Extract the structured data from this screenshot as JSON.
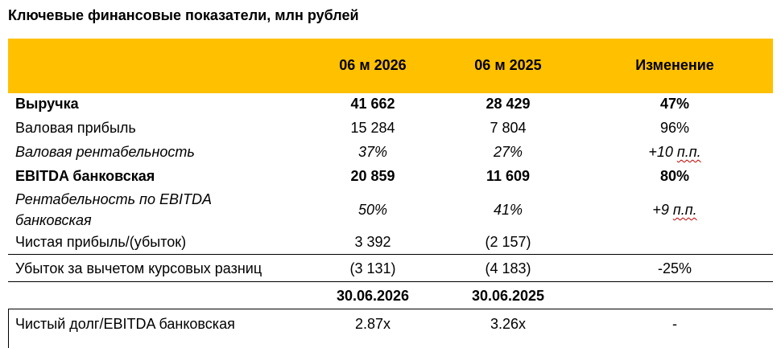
{
  "title": "Ключевые финансовые показатели, млн рублей",
  "header": {
    "col1": "06 м 2026",
    "col2": "06 м 2025",
    "col3": "Изменение"
  },
  "rows": [
    {
      "label": "Выручка",
      "v1": "41 662",
      "v2": "28 429",
      "v3": "47%"
    },
    {
      "label": "Валовая прибыль",
      "v1": "15 284",
      "v2": "7 804",
      "v3": "96%"
    },
    {
      "label": "Валовая рентабельность",
      "v1": "37%",
      "v2": "27%",
      "v3_num": "+10 ",
      "v3_unit": "п.п."
    },
    {
      "label": "EBITDA банковская",
      "v1": "20 859",
      "v2": "11 609",
      "v3": "80%"
    },
    {
      "label_line1": "Рентабельность по EBITDA",
      "label_line2": "банковская",
      "v1": "50%",
      "v2": "41%",
      "v3_num": "+9 ",
      "v3_unit": "п.п."
    },
    {
      "label": "Чистая прибыль/(убыток)",
      "v1": "3 392",
      "v2": "(2 157)",
      "v3": ""
    },
    {
      "label": "Убыток за вычетом курсовых разниц",
      "v1": "(3 131)",
      "v2": "(4 183)",
      "v3": "-25%"
    }
  ],
  "date_header": {
    "col1": "30.06.2026",
    "col2": "30.06.2025"
  },
  "debt_row": {
    "label": "Чистый долг/EBITDA банковская",
    "v1": "2.87x",
    "v2": "3.26x",
    "v3": "-"
  },
  "colors": {
    "header_band": "#FFC000",
    "spellcheck": "#c00000"
  }
}
